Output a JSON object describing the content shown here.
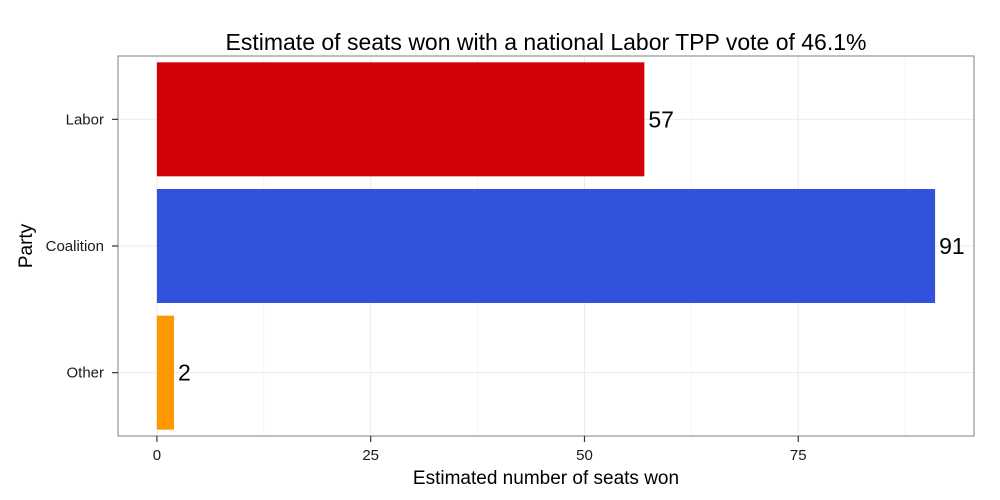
{
  "chart_data": {
    "type": "bar",
    "orientation": "horizontal",
    "title": "Estimate of seats won with a national Labor TPP vote of 46.1%",
    "xlabel": "Estimated number of seats won",
    "ylabel": "Party",
    "categories": [
      "Labor",
      "Coalition",
      "Other"
    ],
    "values": [
      57,
      91,
      2
    ],
    "data_labels": [
      "57",
      "91",
      "2"
    ],
    "colors": [
      "#d20007",
      "#3352db",
      "#ff9800"
    ],
    "xlim": [
      -4.55,
      95.55
    ],
    "xticks": [
      0,
      25,
      50,
      75
    ],
    "xtick_labels": [
      "0",
      "25",
      "50",
      "75"
    ],
    "grid": true,
    "legend": "none"
  }
}
